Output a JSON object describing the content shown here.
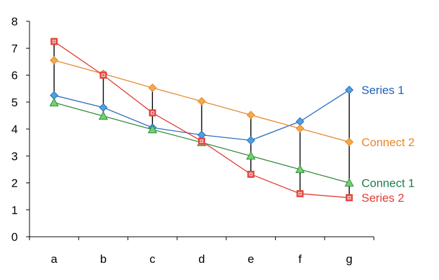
{
  "chart_data": {
    "type": "line",
    "categories": [
      "a",
      "b",
      "c",
      "d",
      "e",
      "f",
      "g"
    ],
    "ylim": [
      0,
      8
    ],
    "yticks": [
      0,
      1,
      2,
      3,
      4,
      5,
      6,
      7,
      8
    ],
    "grid": false,
    "legend": "none",
    "series": [
      {
        "name": "Series 1",
        "color": "#2a6bbf",
        "marker": "diamond",
        "marker_fill": "#4aa3df",
        "values": [
          5.25,
          4.8,
          4.05,
          3.78,
          3.58,
          4.28,
          5.45
        ]
      },
      {
        "name": "Connect 2",
        "color": "#e8862a",
        "marker": "diamond",
        "marker_fill": "#f2a94a",
        "values": [
          6.55,
          6.05,
          5.53,
          5.03,
          4.52,
          4.02,
          3.52
        ]
      },
      {
        "name": "Connect 1",
        "color": "#2e8b3a",
        "marker": "triangle",
        "marker_fill": "#6fd36f",
        "values": [
          4.98,
          4.48,
          3.98,
          3.5,
          3.0,
          2.5,
          2.0
        ]
      },
      {
        "name": "Series 2",
        "color": "#e03a2f",
        "marker": "square",
        "marker_fill": "#e85a55",
        "values": [
          7.25,
          6.0,
          4.6,
          3.55,
          2.32,
          1.6,
          1.45
        ]
      }
    ],
    "connectors": {
      "color": "#000000"
    },
    "label_colors": {
      "Series 1": "#1f5fb5",
      "Connect 2": "#e8862a",
      "Connect 1": "#1e7a4e",
      "Series 2": "#e03a2f"
    },
    "ytick_color_1": "#1a2a7a"
  }
}
